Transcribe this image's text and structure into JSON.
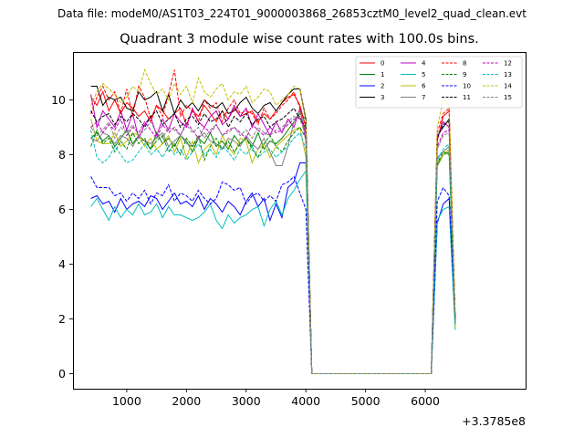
{
  "suptitle": "Data file: modeM0/AS1T03_224T01_9000003868_26853cztM0_level2_quad_clean.evt",
  "chart_data": {
    "type": "line",
    "title": "Quadrant 3 module wise count rates with 100.0s bins.",
    "xlabel": "",
    "ylabel": "",
    "x_offset_label": "+3.3785e8",
    "xlim": [
      100,
      7680
    ],
    "ylim": [
      -0.55,
      11.75
    ],
    "xticks": [
      1000,
      2000,
      3000,
      4000,
      5000,
      6000
    ],
    "yticks": [
      0,
      2,
      4,
      6,
      8,
      10
    ],
    "grid": false,
    "legend_position": "top-right",
    "legend_columns": 4,
    "x": [
      400,
      500,
      600,
      700,
      800,
      900,
      1000,
      1100,
      1200,
      1300,
      1400,
      1500,
      1600,
      1700,
      1800,
      1900,
      2000,
      2100,
      2200,
      2300,
      2400,
      2500,
      2600,
      2700,
      2800,
      2900,
      3000,
      3100,
      3200,
      3300,
      3400,
      3500,
      3600,
      3700,
      3800,
      3900,
      4000,
      4100,
      4200,
      4300,
      4400,
      4500,
      4600,
      4700,
      4800,
      4900,
      5000,
      5100,
      5200,
      5300,
      5400,
      5500,
      5600,
      5700,
      5800,
      5900,
      6000,
      6100,
      6200,
      6300,
      6400,
      6500
    ],
    "series": [
      {
        "name": "0",
        "color": "#ff0000",
        "dash": "solid",
        "values": [
          10.1,
          9.8,
          10.3,
          9.6,
          10.0,
          9.5,
          9.9,
          9.7,
          9.4,
          9.6,
          9.2,
          9.8,
          9.6,
          9.3,
          9.5,
          9.7,
          9.1,
          9.6,
          9.4,
          9.8,
          9.5,
          9.2,
          9.6,
          9.3,
          9.7,
          9.4,
          9.5,
          9.6,
          9.2,
          9.5,
          9.3,
          9.6,
          9.9,
          10.1,
          10.2,
          9.8,
          9.0,
          0.0,
          0.0,
          0.0,
          0.0,
          0.0,
          0.0,
          0.0,
          0.0,
          0.0,
          0.0,
          0.0,
          0.0,
          0.0,
          0.0,
          0.0,
          0.0,
          0.0,
          0.0,
          0.0,
          0.0,
          0.0,
          8.5,
          9.4,
          9.6,
          2.0
        ]
      },
      {
        "name": "1",
        "color": "#008000",
        "dash": "solid",
        "values": [
          8.6,
          8.8,
          8.5,
          8.7,
          8.3,
          8.6,
          8.9,
          8.4,
          8.7,
          8.5,
          8.2,
          8.8,
          8.4,
          8.6,
          8.3,
          8.7,
          8.5,
          8.1,
          8.6,
          8.4,
          8.8,
          8.3,
          8.5,
          8.2,
          8.7,
          8.4,
          8.6,
          8.3,
          8.8,
          8.2,
          8.5,
          8.4,
          8.6,
          8.9,
          9.2,
          9.5,
          9.3,
          0.0,
          0.0,
          0.0,
          0.0,
          0.0,
          0.0,
          0.0,
          0.0,
          0.0,
          0.0,
          0.0,
          0.0,
          0.0,
          0.0,
          0.0,
          0.0,
          0.0,
          0.0,
          0.0,
          0.0,
          0.0,
          7.6,
          8.0,
          8.1,
          1.8
        ]
      },
      {
        "name": "2",
        "color": "#0000ff",
        "dash": "solid",
        "values": [
          6.4,
          6.5,
          6.2,
          6.3,
          5.9,
          6.4,
          6.0,
          6.2,
          6.3,
          6.1,
          6.5,
          6.4,
          6.0,
          6.3,
          6.6,
          6.2,
          6.3,
          6.1,
          6.5,
          6.0,
          6.4,
          6.2,
          5.9,
          6.3,
          6.1,
          5.8,
          6.3,
          6.6,
          6.1,
          6.4,
          5.6,
          6.2,
          5.7,
          6.8,
          7.0,
          7.7,
          7.7,
          0.0,
          0.0,
          0.0,
          0.0,
          0.0,
          0.0,
          0.0,
          0.0,
          0.0,
          0.0,
          0.0,
          0.0,
          0.0,
          0.0,
          0.0,
          0.0,
          0.0,
          0.0,
          0.0,
          0.0,
          0.0,
          5.5,
          6.2,
          6.4,
          1.9
        ]
      },
      {
        "name": "3",
        "color": "#000000",
        "dash": "solid",
        "values": [
          10.5,
          10.5,
          9.8,
          10.1,
          10.0,
          10.1,
          9.7,
          9.6,
          10.3,
          10.0,
          10.1,
          10.3,
          9.6,
          10.2,
          9.5,
          10.0,
          9.7,
          9.9,
          9.6,
          10.0,
          9.8,
          9.7,
          9.9,
          9.5,
          9.6,
          9.9,
          10.1,
          9.7,
          9.5,
          9.8,
          9.9,
          9.6,
          9.9,
          10.2,
          10.4,
          10.4,
          9.3,
          0.0,
          0.0,
          0.0,
          0.0,
          0.0,
          0.0,
          0.0,
          0.0,
          0.0,
          0.0,
          0.0,
          0.0,
          0.0,
          0.0,
          0.0,
          0.0,
          0.0,
          0.0,
          0.0,
          0.0,
          0.0,
          8.7,
          9.0,
          9.3,
          2.1
        ]
      },
      {
        "name": "4",
        "color": "#bf00bf",
        "dash": "solid",
        "values": [
          10.2,
          9.0,
          9.6,
          9.3,
          9.0,
          9.6,
          8.9,
          9.5,
          8.6,
          9.1,
          9.4,
          8.7,
          9.3,
          8.9,
          9.5,
          9.2,
          9.0,
          9.7,
          9.2,
          9.0,
          9.4,
          9.6,
          9.1,
          9.3,
          9.8,
          9.4,
          9.7,
          9.0,
          9.5,
          9.1,
          8.7,
          9.2,
          8.8,
          9.3,
          9.0,
          9.7,
          8.5,
          0.0,
          0.0,
          0.0,
          0.0,
          0.0,
          0.0,
          0.0,
          0.0,
          0.0,
          0.0,
          0.0,
          0.0,
          0.0,
          0.0,
          0.0,
          0.0,
          0.0,
          0.0,
          0.0,
          0.0,
          0.0,
          8.6,
          9.2,
          9.0,
          2.0
        ]
      },
      {
        "name": "5",
        "color": "#00bfbf",
        "dash": "solid",
        "values": [
          6.1,
          6.4,
          6.0,
          5.6,
          6.1,
          5.7,
          6.0,
          5.8,
          6.2,
          5.8,
          5.9,
          6.2,
          5.7,
          6.1,
          5.8,
          5.8,
          5.7,
          5.6,
          5.7,
          5.9,
          6.2,
          5.6,
          5.3,
          5.8,
          5.5,
          5.7,
          5.8,
          6.0,
          6.1,
          5.4,
          6.0,
          6.3,
          5.8,
          6.4,
          6.7,
          7.1,
          7.4,
          0.0,
          0.0,
          0.0,
          0.0,
          0.0,
          0.0,
          0.0,
          0.0,
          0.0,
          0.0,
          0.0,
          0.0,
          0.0,
          0.0,
          0.0,
          0.0,
          0.0,
          0.0,
          0.0,
          0.0,
          0.0,
          5.6,
          6.0,
          6.1,
          1.6
        ]
      },
      {
        "name": "6",
        "color": "#bfbf00",
        "dash": "solid",
        "values": [
          9.3,
          8.5,
          8.4,
          8.4,
          8.8,
          8.3,
          8.5,
          8.8,
          8.7,
          8.3,
          8.6,
          8.2,
          8.4,
          8.7,
          8.1,
          8.6,
          7.9,
          8.5,
          7.7,
          8.2,
          8.4,
          8.0,
          8.7,
          8.3,
          8.0,
          8.6,
          8.5,
          7.7,
          8.2,
          8.4,
          7.9,
          8.3,
          8.5,
          8.7,
          8.9,
          9.0,
          7.9,
          0.0,
          0.0,
          0.0,
          0.0,
          0.0,
          0.0,
          0.0,
          0.0,
          0.0,
          0.0,
          0.0,
          0.0,
          0.0,
          0.0,
          0.0,
          0.0,
          0.0,
          0.0,
          0.0,
          0.0,
          0.0,
          7.7,
          8.0,
          8.2,
          1.7
        ]
      },
      {
        "name": "7",
        "color": "#808080",
        "dash": "solid",
        "values": [
          8.6,
          8.5,
          8.8,
          8.7,
          8.4,
          8.7,
          8.6,
          8.3,
          8.7,
          8.5,
          8.4,
          8.6,
          8.8,
          8.3,
          8.5,
          8.7,
          8.4,
          8.3,
          8.6,
          8.8,
          8.5,
          8.4,
          8.2,
          8.6,
          8.5,
          8.3,
          8.7,
          8.4,
          8.2,
          8.6,
          8.1,
          7.6,
          7.6,
          8.3,
          9.2,
          9.6,
          8.8,
          0.0,
          0.0,
          0.0,
          0.0,
          0.0,
          0.0,
          0.0,
          0.0,
          0.0,
          0.0,
          0.0,
          0.0,
          0.0,
          0.0,
          0.0,
          0.0,
          0.0,
          0.0,
          0.0,
          0.0,
          0.0,
          7.9,
          8.1,
          8.3,
          1.9
        ]
      },
      {
        "name": "8",
        "color": "#ff0000",
        "dash": "dashed",
        "values": [
          9.5,
          10.1,
          10.5,
          10.0,
          10.3,
          9.5,
          10.4,
          9.4,
          10.5,
          10.1,
          9.3,
          9.8,
          9.4,
          10.2,
          11.1,
          9.4,
          9.8,
          9.6,
          9.2,
          10.0,
          9.7,
          9.9,
          9.2,
          9.7,
          10.0,
          9.5,
          9.6,
          9.5,
          9.1,
          9.7,
          9.3,
          9.5,
          9.8,
          10.0,
          10.3,
          9.7,
          9.0,
          0.0,
          0.0,
          0.0,
          0.0,
          0.0,
          0.0,
          0.0,
          0.0,
          0.0,
          0.0,
          0.0,
          0.0,
          0.0,
          0.0,
          0.0,
          0.0,
          0.0,
          0.0,
          0.0,
          0.0,
          0.0,
          8.8,
          9.5,
          9.7,
          2.0
        ]
      },
      {
        "name": "9",
        "color": "#008000",
        "dash": "dashed",
        "values": [
          8.3,
          8.9,
          8.4,
          8.6,
          8.1,
          8.5,
          8.2,
          8.8,
          8.4,
          8.6,
          8.2,
          8.5,
          8.7,
          8.1,
          8.4,
          8.0,
          8.6,
          8.3,
          8.7,
          7.8,
          8.3,
          8.6,
          8.2,
          8.5,
          8.1,
          8.4,
          8.6,
          8.2,
          7.9,
          8.4,
          8.7,
          8.3,
          8.1,
          8.5,
          8.8,
          9.0,
          8.6,
          0.0,
          0.0,
          0.0,
          0.0,
          0.0,
          0.0,
          0.0,
          0.0,
          0.0,
          0.0,
          0.0,
          0.0,
          0.0,
          0.0,
          0.0,
          0.0,
          0.0,
          0.0,
          0.0,
          0.0,
          0.0,
          7.7,
          8.1,
          8.0,
          1.8
        ]
      },
      {
        "name": "10",
        "color": "#0000ff",
        "dash": "dashed",
        "values": [
          7.2,
          6.8,
          6.8,
          6.8,
          6.5,
          6.6,
          6.3,
          6.6,
          6.4,
          6.7,
          6.2,
          6.6,
          6.5,
          6.9,
          6.3,
          6.6,
          6.5,
          6.3,
          6.7,
          6.4,
          6.2,
          6.4,
          7.0,
          6.9,
          6.7,
          6.8,
          6.2,
          6.5,
          6.6,
          6.3,
          6.5,
          6.3,
          6.9,
          7.0,
          7.2,
          6.6,
          6.0,
          0.0,
          0.0,
          0.0,
          0.0,
          0.0,
          0.0,
          0.0,
          0.0,
          0.0,
          0.0,
          0.0,
          0.0,
          0.0,
          0.0,
          0.0,
          0.0,
          0.0,
          0.0,
          0.0,
          0.0,
          0.0,
          6.3,
          6.8,
          6.5,
          2.0
        ]
      },
      {
        "name": "11",
        "color": "#000000",
        "dash": "dashed",
        "values": [
          9.6,
          9.2,
          9.4,
          9.5,
          9.1,
          9.4,
          9.2,
          9.5,
          9.3,
          9.0,
          9.4,
          9.6,
          9.1,
          9.3,
          9.5,
          9.0,
          9.3,
          9.4,
          9.1,
          9.5,
          9.2,
          9.3,
          9.6,
          9.0,
          9.4,
          9.2,
          9.5,
          9.1,
          9.3,
          9.4,
          9.0,
          9.2,
          9.3,
          9.5,
          9.7,
          9.3,
          9.0,
          0.0,
          0.0,
          0.0,
          0.0,
          0.0,
          0.0,
          0.0,
          0.0,
          0.0,
          0.0,
          0.0,
          0.0,
          0.0,
          0.0,
          0.0,
          0.0,
          0.0,
          0.0,
          0.0,
          0.0,
          0.0,
          8.6,
          9.1,
          9.2,
          2.1
        ]
      },
      {
        "name": "12",
        "color": "#bf00bf",
        "dash": "dashed",
        "values": [
          9.0,
          9.2,
          8.8,
          9.1,
          8.9,
          9.3,
          8.7,
          9.0,
          8.8,
          9.2,
          8.9,
          8.6,
          9.1,
          8.8,
          9.0,
          8.7,
          9.2,
          8.9,
          8.6,
          9.0,
          8.8,
          9.1,
          8.7,
          8.9,
          9.0,
          8.8,
          8.6,
          9.1,
          8.9,
          8.7,
          9.0,
          8.8,
          8.9,
          9.1,
          9.3,
          9.4,
          8.8,
          0.0,
          0.0,
          0.0,
          0.0,
          0.0,
          0.0,
          0.0,
          0.0,
          0.0,
          0.0,
          0.0,
          0.0,
          0.0,
          0.0,
          0.0,
          0.0,
          0.0,
          0.0,
          0.0,
          0.0,
          0.0,
          8.3,
          8.8,
          8.9,
          1.9
        ]
      },
      {
        "name": "13",
        "color": "#00bfbf",
        "dash": "dashed",
        "values": [
          8.9,
          7.9,
          7.7,
          7.9,
          8.3,
          8.0,
          7.7,
          7.8,
          8.1,
          8.4,
          8.0,
          8.2,
          7.9,
          8.3,
          8.0,
          8.2,
          7.8,
          8.1,
          8.4,
          8.0,
          8.2,
          7.9,
          8.3,
          8.1,
          7.8,
          8.2,
          8.0,
          8.3,
          7.9,
          8.1,
          8.2,
          7.9,
          8.1,
          8.3,
          8.6,
          8.8,
          8.2,
          0.0,
          0.0,
          0.0,
          0.0,
          0.0,
          0.0,
          0.0,
          0.0,
          0.0,
          0.0,
          0.0,
          0.0,
          0.0,
          0.0,
          0.0,
          0.0,
          0.0,
          0.0,
          0.0,
          0.0,
          0.0,
          7.8,
          8.2,
          8.4,
          1.8
        ]
      },
      {
        "name": "14",
        "color": "#bfbf00",
        "dash": "dashed",
        "values": [
          9.8,
          10.3,
          10.6,
          10.4,
          10.2,
          9.9,
          10.1,
          10.5,
          10.3,
          11.1,
          10.6,
          10.2,
          10.4,
          10.0,
          10.6,
          10.2,
          10.5,
          9.9,
          10.8,
          10.3,
          10.1,
          10.4,
          10.6,
          10.0,
          10.3,
          10.2,
          10.5,
          9.9,
          10.1,
          10.4,
          10.3,
          9.8,
          10.0,
          10.2,
          10.5,
          10.4,
          9.2,
          0.0,
          0.0,
          0.0,
          0.0,
          0.0,
          0.0,
          0.0,
          0.0,
          0.0,
          0.0,
          0.0,
          0.0,
          0.0,
          0.0,
          0.0,
          0.0,
          0.0,
          0.0,
          0.0,
          0.0,
          0.0,
          9.0,
          10.0,
          9.8,
          2.2
        ]
      },
      {
        "name": "15",
        "color": "#808080",
        "dash": "dashed",
        "values": [
          9.0,
          8.7,
          8.9,
          9.2,
          8.6,
          9.0,
          8.8,
          9.1,
          8.7,
          8.9,
          9.2,
          8.8,
          8.6,
          9.0,
          8.9,
          8.7,
          9.1,
          8.8,
          9.0,
          8.6,
          8.9,
          9.1,
          8.7,
          8.8,
          9.0,
          8.7,
          8.9,
          8.6,
          9.0,
          8.8,
          8.7,
          8.9,
          9.0,
          9.2,
          9.4,
          9.3,
          8.7,
          0.0,
          0.0,
          0.0,
          0.0,
          0.0,
          0.0,
          0.0,
          0.0,
          0.0,
          0.0,
          0.0,
          0.0,
          0.0,
          0.0,
          0.0,
          0.0,
          0.0,
          0.0,
          0.0,
          0.0,
          0.0,
          8.2,
          8.7,
          8.8,
          1.9
        ]
      }
    ]
  }
}
